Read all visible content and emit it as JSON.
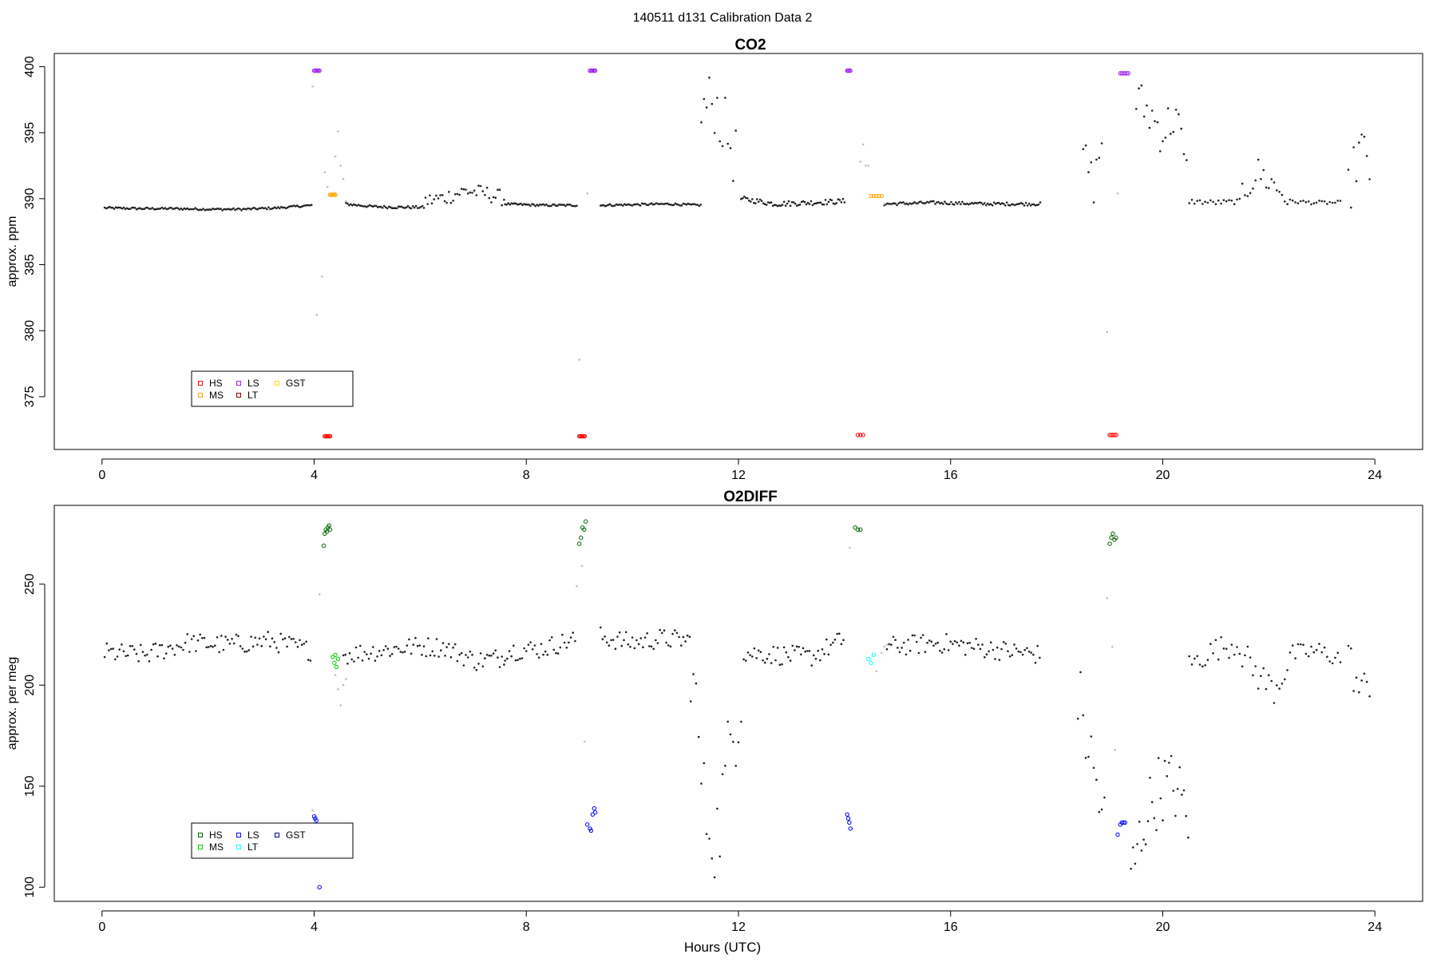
{
  "figure": {
    "title": "140511   d131   Calibration Data 2",
    "xlabel": "Hours (UTC)"
  },
  "chart_data": [
    {
      "type": "scatter",
      "title": "CO2",
      "ylabel": "approx. ppm",
      "xlabel": "",
      "xlim": [
        -0.9,
        24.9
      ],
      "ylim": [
        371,
        401
      ],
      "xticks": [
        0,
        4,
        8,
        12,
        16,
        20,
        24
      ],
      "yticks": [
        375,
        380,
        385,
        390,
        395,
        400
      ],
      "grid": false,
      "legend_position": "bottom-left",
      "legend": [
        {
          "label": "HS",
          "color": "#ff0000"
        },
        {
          "label": "MS",
          "color": "#ffa500"
        },
        {
          "label": "LS",
          "color": "#a020f0"
        },
        {
          "label": "LT",
          "color": "#8b0000"
        },
        {
          "label": "GST",
          "color": "#ffd700"
        }
      ],
      "calibration_points": [
        {
          "series": "LS",
          "color": "#a020f0",
          "x": [
            4.0,
            4.02,
            4.04,
            4.06,
            4.08,
            4.1
          ],
          "y": [
            399.7,
            399.7,
            399.7,
            399.7,
            399.7,
            399.7
          ]
        },
        {
          "series": "HS",
          "color": "#ff0000",
          "x": [
            4.2,
            4.22,
            4.24,
            4.26,
            4.28,
            4.3
          ],
          "y": [
            372.0,
            372.0,
            372.0,
            372.0,
            372.0,
            372.0
          ]
        },
        {
          "series": "MS",
          "color": "#ffa500",
          "x": [
            4.3,
            4.32,
            4.34,
            4.36,
            4.38,
            4.4
          ],
          "y": [
            390.3,
            390.3,
            390.3,
            390.3,
            390.3,
            390.3
          ]
        },
        {
          "series": "HS",
          "color": "#ff0000",
          "x": [
            9.0,
            9.02,
            9.04,
            9.06,
            9.08,
            9.1
          ],
          "y": [
            372.0,
            372.0,
            372.0,
            372.0,
            372.0,
            372.0
          ]
        },
        {
          "series": "LS",
          "color": "#a020f0",
          "x": [
            9.2,
            9.22,
            9.24,
            9.26,
            9.28,
            9.3
          ],
          "y": [
            399.7,
            399.7,
            399.7,
            399.7,
            399.7,
            399.7
          ]
        },
        {
          "series": "LS",
          "color": "#a020f0",
          "x": [
            14.05,
            14.07,
            14.09,
            14.11
          ],
          "y": [
            399.7,
            399.7,
            399.7,
            399.7
          ]
        },
        {
          "series": "HS",
          "color": "#ff0000",
          "x": [
            14.25,
            14.3,
            14.35
          ],
          "y": [
            372.1,
            372.1,
            372.1
          ]
        },
        {
          "series": "MS",
          "color": "#ffa500",
          "x": [
            14.5,
            14.55,
            14.6,
            14.65,
            14.7
          ],
          "y": [
            390.2,
            390.2,
            390.2,
            390.2,
            390.2
          ]
        },
        {
          "series": "HS",
          "color": "#ff0000",
          "x": [
            19.0,
            19.03,
            19.06,
            19.09,
            19.12
          ],
          "y": [
            372.1,
            372.1,
            372.1,
            372.1,
            372.1
          ]
        },
        {
          "series": "LS",
          "color": "#a020f0",
          "x": [
            19.2,
            19.23,
            19.26,
            19.29,
            19.32,
            19.35
          ],
          "y": [
            399.5,
            399.5,
            399.5,
            399.5,
            399.5,
            399.5
          ]
        }
      ],
      "transition_points": {
        "color": "#bfbfbf",
        "x": [
          3.97,
          4.05,
          4.15,
          4.4,
          4.45,
          4.5,
          4.55,
          4.6,
          4.25,
          4.2,
          9.0,
          9.15,
          14.3,
          14.35,
          14.4,
          14.45,
          14.75,
          18.95,
          19.15
        ],
        "y": [
          398.5,
          381.2,
          384.1,
          393.2,
          395.1,
          392.5,
          391.5,
          389.8,
          390.9,
          392.0,
          377.8,
          390.4,
          392.8,
          394.1,
          392.5,
          392.5,
          389.6,
          379.9,
          390.4
        ]
      },
      "segments": [
        {
          "x0": 0.05,
          "x1": 3.95,
          "base": [
            389.3,
            389.25,
            389.25,
            389.2,
            389.2,
            389.3,
            389.5
          ],
          "noise": 0.08,
          "step": 0.03
        },
        {
          "x0": 4.6,
          "x1": 6.1,
          "base": [
            389.6,
            389.4,
            389.35,
            389.35
          ],
          "noise": 0.1,
          "step": 0.03
        },
        {
          "x0": 6.1,
          "x1": 7.6,
          "base": [
            389.8,
            390.1,
            390.6,
            390.4,
            390.0
          ],
          "noise": 0.6,
          "step": 0.04
        },
        {
          "x0": 7.6,
          "x1": 8.95,
          "base": [
            389.6,
            389.5,
            389.5
          ],
          "noise": 0.08,
          "step": 0.03
        },
        {
          "x0": 9.4,
          "x1": 11.3,
          "base": [
            389.5,
            389.55,
            389.6,
            389.5
          ],
          "noise": 0.08,
          "step": 0.03
        },
        {
          "x0": 11.3,
          "x1": 12.0,
          "base": [
            396.5,
            397.5,
            395.0,
            392.5
          ],
          "noise": 2.5,
          "step": 0.05
        },
        {
          "x0": 12.05,
          "x1": 14.0,
          "base": [
            390.0,
            389.6,
            389.7,
            389.8
          ],
          "noise": 0.2,
          "step": 0.03
        },
        {
          "x0": 14.75,
          "x1": 17.7,
          "base": [
            389.6,
            389.7,
            389.6,
            389.6
          ],
          "noise": 0.12,
          "step": 0.03
        },
        {
          "x0": 18.5,
          "x1": 18.9,
          "base": [
            393.5,
            391.0,
            395.5
          ],
          "noise": 1.5,
          "step": 0.05
        },
        {
          "x0": 19.5,
          "x1": 20.5,
          "base": [
            397.5,
            396.5,
            395.0,
            396.5,
            390.5
          ],
          "noise": 1.8,
          "step": 0.05
        },
        {
          "x0": 20.5,
          "x1": 21.5,
          "base": [
            389.8,
            389.7,
            389.8
          ],
          "noise": 0.2,
          "step": 0.05
        },
        {
          "x0": 21.5,
          "x1": 22.4,
          "base": [
            390.5,
            392.0,
            391.0,
            390.0
          ],
          "noise": 1.2,
          "step": 0.05
        },
        {
          "x0": 22.4,
          "x1": 23.4,
          "base": [
            389.8,
            389.7,
            389.7
          ],
          "noise": 0.15,
          "step": 0.05
        },
        {
          "x0": 23.5,
          "x1": 23.95,
          "base": [
            390.5,
            394.0,
            391.5
          ],
          "noise": 2.0,
          "step": 0.05
        }
      ]
    },
    {
      "type": "scatter",
      "title": "O2DIFF",
      "ylabel": "approx. per meg",
      "xlabel": "Hours (UTC)",
      "xlim": [
        -0.9,
        24.9
      ],
      "ylim": [
        93,
        289
      ],
      "xticks": [
        0,
        4,
        8,
        12,
        16,
        20,
        24
      ],
      "yticks": [
        100,
        150,
        200,
        250
      ],
      "grid": false,
      "legend_position": "bottom-left",
      "legend": [
        {
          "label": "HS",
          "color": "#006400"
        },
        {
          "label": "MS",
          "color": "#00cd00"
        },
        {
          "label": "LS",
          "color": "#0000ff"
        },
        {
          "label": "LT",
          "color": "#00ffff"
        },
        {
          "label": "GST",
          "color": "#00008b"
        }
      ],
      "calibration_points": [
        {
          "series": "HS",
          "color": "#006400",
          "x": [
            4.18,
            4.2,
            4.22,
            4.24,
            4.26,
            4.28,
            4.3
          ],
          "y": [
            269,
            275,
            277,
            276,
            278,
            279,
            277
          ]
        },
        {
          "series": "LS",
          "color": "#0000ff",
          "x": [
            4.0,
            4.02,
            4.04,
            4.1
          ],
          "y": [
            135,
            134,
            133,
            100
          ]
        },
        {
          "series": "MS",
          "color": "#00cd00",
          "x": [
            4.35,
            4.38,
            4.4,
            4.42,
            4.45
          ],
          "y": [
            214,
            211,
            215,
            209,
            213
          ]
        },
        {
          "series": "HS",
          "color": "#006400",
          "x": [
            9.0,
            9.03,
            9.06,
            9.09,
            9.12
          ],
          "y": [
            270,
            273,
            278,
            277,
            281
          ]
        },
        {
          "series": "LS",
          "color": "#0000ff",
          "x": [
            9.15,
            9.2,
            9.22,
            9.25,
            9.28,
            9.3
          ],
          "y": [
            131,
            129,
            128,
            136,
            139,
            137
          ]
        },
        {
          "series": "HS",
          "color": "#006400",
          "x": [
            14.2,
            14.25,
            14.3
          ],
          "y": [
            278,
            277,
            277
          ]
        },
        {
          "series": "LS",
          "color": "#0000ff",
          "x": [
            14.05,
            14.07,
            14.09,
            14.11
          ],
          "y": [
            136,
            134,
            132,
            129
          ]
        },
        {
          "series": "LT",
          "color": "#00ffff",
          "x": [
            14.45,
            14.5,
            14.55
          ],
          "y": [
            213,
            211,
            215
          ]
        },
        {
          "series": "HS",
          "color": "#006400",
          "x": [
            19.0,
            19.03,
            19.06,
            19.09,
            19.12
          ],
          "y": [
            270,
            273,
            275,
            272,
            273
          ]
        },
        {
          "series": "LS",
          "color": "#0000ff",
          "x": [
            19.15,
            19.2,
            19.23,
            19.26,
            19.29
          ],
          "y": [
            126,
            131,
            132,
            132,
            132
          ]
        }
      ],
      "transition_points": {
        "color": "#bfbfbf",
        "x": [
          3.97,
          4.1,
          4.4,
          4.45,
          4.5,
          4.55,
          4.6,
          8.95,
          9.05,
          9.1,
          14.1,
          14.15,
          14.6,
          14.7,
          14.75,
          14.8,
          18.95,
          19.05,
          19.1
        ],
        "y": [
          138,
          245,
          205,
          198,
          190,
          200,
          203,
          249,
          259,
          172,
          268,
          129,
          207,
          216,
          219,
          220,
          243,
          219,
          168
        ]
      },
      "segments": [
        {
          "x0": 0.05,
          "x1": 3.95,
          "base": [
            216,
            215,
            221,
            220,
            222,
            217
          ],
          "noise": 5,
          "step": 0.04
        },
        {
          "x0": 4.55,
          "x1": 6.5,
          "base": [
            215,
            217,
            219,
            219
          ],
          "noise": 5,
          "step": 0.04
        },
        {
          "x0": 6.5,
          "x1": 7.6,
          "base": [
            218,
            212,
            214
          ],
          "noise": 5,
          "step": 0.04
        },
        {
          "x0": 7.6,
          "x1": 8.95,
          "base": [
            217,
            218,
            223
          ],
          "noise": 5,
          "step": 0.04
        },
        {
          "x0": 9.4,
          "x1": 11.1,
          "base": [
            224,
            221,
            223,
            222
          ],
          "noise": 5,
          "step": 0.04
        },
        {
          "x0": 11.1,
          "x1": 12.1,
          "base": [
            216,
            140,
            125,
            170,
            205
          ],
          "noise": 25,
          "step": 0.05
        },
        {
          "x0": 12.1,
          "x1": 14.0,
          "base": [
            216,
            215,
            214,
            223
          ],
          "noise": 5,
          "step": 0.04
        },
        {
          "x0": 14.8,
          "x1": 17.7,
          "base": [
            219,
            221,
            218,
            215
          ],
          "noise": 5,
          "step": 0.04
        },
        {
          "x0": 18.4,
          "x1": 18.95,
          "base": [
            195,
            160,
            125
          ],
          "noise": 20,
          "step": 0.05
        },
        {
          "x0": 19.4,
          "x1": 20.5,
          "base": [
            105,
            135,
            150,
            150,
            135
          ],
          "noise": 18,
          "step": 0.04
        },
        {
          "x0": 20.5,
          "x1": 21.5,
          "base": [
            210,
            218,
            221
          ],
          "noise": 6,
          "step": 0.05
        },
        {
          "x0": 21.5,
          "x1": 22.4,
          "base": [
            215,
            205,
            198,
            212
          ],
          "noise": 8,
          "step": 0.05
        },
        {
          "x0": 22.4,
          "x1": 23.4,
          "base": [
            215,
            217,
            213
          ],
          "noise": 5,
          "step": 0.05
        },
        {
          "x0": 23.5,
          "x1": 23.95,
          "base": [
            215,
            195,
            205
          ],
          "noise": 10,
          "step": 0.05
        }
      ]
    }
  ]
}
